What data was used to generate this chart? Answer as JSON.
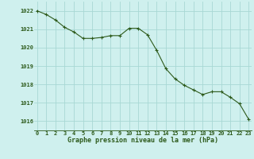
{
  "x": [
    0,
    1,
    2,
    3,
    4,
    5,
    6,
    7,
    8,
    9,
    10,
    11,
    12,
    13,
    14,
    15,
    16,
    17,
    18,
    19,
    20,
    21,
    22,
    23
  ],
  "y": [
    1022.0,
    1021.8,
    1021.5,
    1021.1,
    1020.85,
    1020.5,
    1020.5,
    1020.55,
    1020.65,
    1020.65,
    1021.05,
    1021.05,
    1020.7,
    1019.85,
    1018.85,
    1018.3,
    1017.95,
    1017.7,
    1017.45,
    1017.6,
    1017.6,
    1017.3,
    1016.95,
    1016.1
  ],
  "line_color": "#2d5a1b",
  "marker_color": "#2d5a1b",
  "bg_color": "#cff0ee",
  "grid_color": "#a8d8d4",
  "xlabel": "Graphe pression niveau de la mer (hPa)",
  "xlabel_color": "#2d5a1b",
  "tick_color": "#2d5a1b",
  "ylim": [
    1015.5,
    1022.5
  ],
  "xlim": [
    -0.3,
    23.3
  ],
  "yticks": [
    1016,
    1017,
    1018,
    1019,
    1020,
    1021,
    1022
  ],
  "xticks": [
    0,
    1,
    2,
    3,
    4,
    5,
    6,
    7,
    8,
    9,
    10,
    11,
    12,
    13,
    14,
    15,
    16,
    17,
    18,
    19,
    20,
    21,
    22,
    23
  ],
  "xtick_labels": [
    "0",
    "1",
    "2",
    "3",
    "4",
    "5",
    "6",
    "7",
    "8",
    "9",
    "10",
    "11",
    "12",
    "13",
    "14",
    "15",
    "16",
    "17",
    "18",
    "19",
    "20",
    "21",
    "22",
    "23"
  ]
}
